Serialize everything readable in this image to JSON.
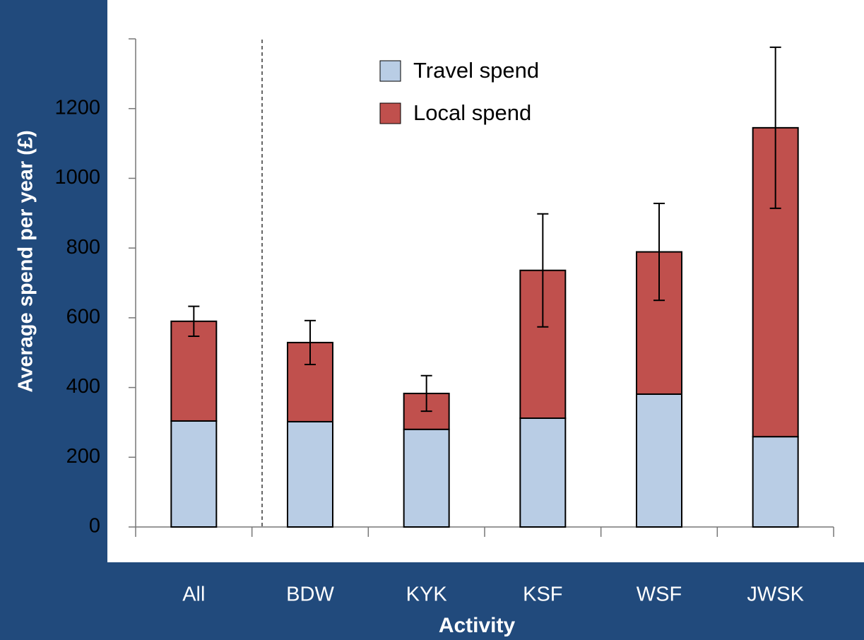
{
  "chart_data": {
    "type": "stacked-bar",
    "x_label": "Activity",
    "y_label": "Average spend per year (£)",
    "categories": [
      "All",
      "BDW",
      "KYK",
      "KSF",
      "WSF",
      "JWSK"
    ],
    "series": [
      {
        "name": "Travel spend",
        "color": "#b9cde5",
        "values": [
          304,
          302,
          280,
          312,
          381,
          259
        ]
      },
      {
        "name": "Local spend",
        "color": "#c0504d",
        "values": [
          286,
          227,
          103,
          424,
          408,
          886
        ]
      }
    ],
    "errors": [
      43,
      63,
      51,
      162,
      139,
      231
    ],
    "ylim": [
      0,
      1400
    ],
    "yticks": [
      0,
      200,
      400,
      600,
      800,
      1000,
      1200
    ],
    "legend": "top"
  }
}
